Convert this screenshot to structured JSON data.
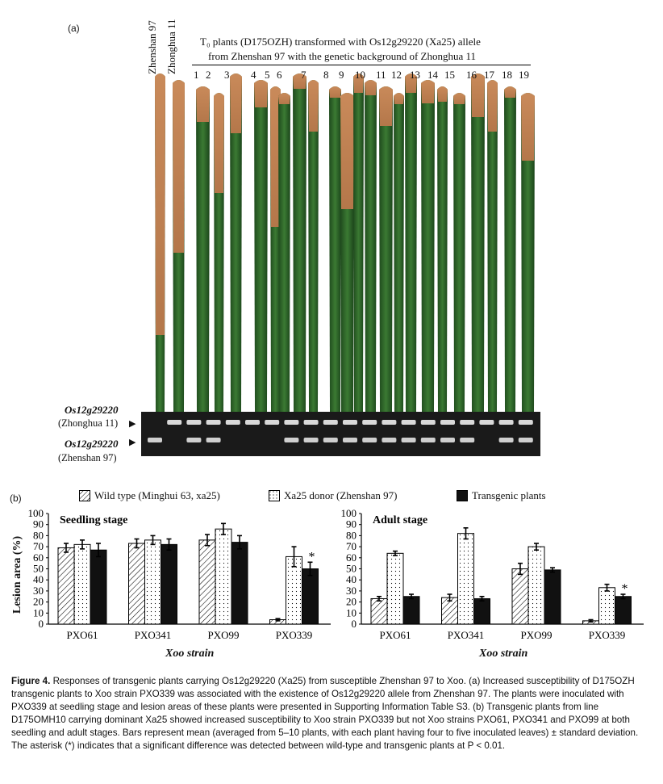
{
  "panel_a": {
    "label": "(a)",
    "control_labels": [
      "Zhenshan 97",
      "Zhonghua 11"
    ],
    "header_line1": "T₀ plants (D175OZH) transformed with Os12g29220 (Xa25) allele",
    "header_line2": "from Zhenshan 97 with the genetic background of Zhonghua 11",
    "plant_numbers": [
      "1",
      "2",
      "3",
      "4",
      "5",
      "6",
      "7",
      "8",
      "9",
      "10",
      "11",
      "12",
      "13",
      "14",
      "15",
      "16",
      "17",
      "18",
      "19"
    ],
    "gel_label_top_gene": "Os12g29220",
    "gel_label_top_source": "(Zhonghua 11)",
    "gel_label_bottom_gene": "Os12g29220",
    "gel_label_bottom_source": "(Zhenshan 97)"
  },
  "panel_b": {
    "label": "(b)",
    "legend": [
      {
        "label": "Wild type (Minghui 63, xa25)",
        "pattern": "hatched"
      },
      {
        "label": "Xa25 donor (Zhenshan 97)",
        "pattern": "dotted"
      },
      {
        "label": "Transgenic plants",
        "pattern": "solid"
      }
    ],
    "ylabel": "Lesion area (%)",
    "xlabel": "Xoo strain",
    "significance_marker": "*"
  },
  "chart_data": [
    {
      "type": "bar",
      "title": "Seedling stage",
      "categories": [
        "PXO61",
        "PXO341",
        "PXO99",
        "PXO339"
      ],
      "ylim": [
        0,
        100
      ],
      "yticks": [
        0,
        10,
        20,
        30,
        40,
        50,
        60,
        70,
        80,
        90,
        100
      ],
      "series": [
        {
          "name": "Wild type (Minghui 63, xa25)",
          "values": [
            69,
            73,
            76,
            4
          ],
          "errors": [
            4,
            4,
            5,
            1
          ]
        },
        {
          "name": "Xa25 donor (Zhenshan 97)",
          "values": [
            72,
            76,
            86,
            61
          ],
          "errors": [
            4,
            4,
            5,
            9
          ]
        },
        {
          "name": "Transgenic plants",
          "values": [
            67,
            72,
            74,
            50
          ],
          "errors": [
            6,
            5,
            6,
            6
          ]
        }
      ],
      "significant": [
        false,
        false,
        false,
        true
      ]
    },
    {
      "type": "bar",
      "title": "Adult stage",
      "categories": [
        "PXO61",
        "PXO341",
        "PXO99",
        "PXO339"
      ],
      "ylim": [
        0,
        100
      ],
      "yticks": [
        0,
        10,
        20,
        30,
        40,
        50,
        60,
        70,
        80,
        90,
        100
      ],
      "series": [
        {
          "name": "Wild type (Minghui 63, xa25)",
          "values": [
            23,
            24,
            50,
            3
          ],
          "errors": [
            2,
            3,
            5,
            1
          ]
        },
        {
          "name": "Xa25 donor (Zhenshan 97)",
          "values": [
            64,
            82,
            70,
            33
          ],
          "errors": [
            2,
            5,
            3,
            3
          ]
        },
        {
          "name": "Transgenic plants",
          "values": [
            25,
            23,
            49,
            25
          ],
          "errors": [
            2,
            2,
            2,
            2
          ]
        }
      ],
      "significant": [
        false,
        false,
        false,
        true
      ]
    }
  ],
  "caption": {
    "figure_label": "Figure 4.",
    "text": "Responses of transgenic plants carrying Os12g29220 (Xa25) from susceptible Zhenshan 97 to Xoo. (a) Increased susceptibility of D175OZH transgenic plants to Xoo strain PXO339 was associated with the existence of Os12g29220 allele from Zhenshan 97. The plants were inoculated with PXO339 at seedling stage and lesion areas of these plants were presented in Supporting Information Table S3. (b) Transgenic plants from line D175OMH10 carrying dominant Xa25 showed increased susceptibility to Xoo strain PXO339 but not Xoo strains PXO61, PXO341 and PXO99 at both seedling and adult stages. Bars represent mean (averaged from 5–10 plants, with each plant having four to five inoculated leaves) ± standard deviation. The asterisk (*) indicates that a significant difference was detected between wild-type and transgenic plants at P < 0.01."
  }
}
